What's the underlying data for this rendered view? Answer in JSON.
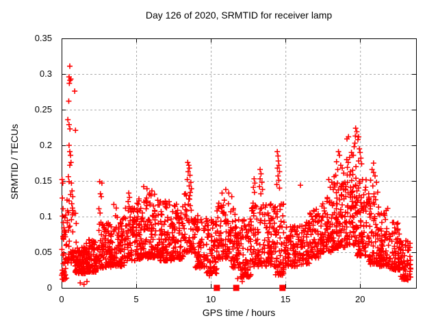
{
  "chart_data": {
    "type": "scatter",
    "title": "Day 126 of 2020, SRMTID for receiver lamp",
    "xlabel": "GPS time / hours",
    "ylabel": "SRMTID / TECUs",
    "xlim": [
      0,
      23.75
    ],
    "ylim": [
      0,
      0.35
    ],
    "x_ticks": [
      0,
      5,
      10,
      15,
      20
    ],
    "x_tick_labels": [
      "0",
      "5",
      "10",
      "15",
      "20"
    ],
    "y_ticks": [
      0,
      0.05,
      0.1,
      0.15,
      0.2,
      0.25,
      0.3,
      0.35
    ],
    "y_tick_labels": [
      "0",
      "0.05",
      "0.1",
      "0.15",
      "0.2",
      "0.25",
      "0.3",
      "0.35"
    ],
    "grid": true,
    "legend_position": "none",
    "marker": "plus",
    "colors": {
      "points": "#ff0000",
      "grid": "#a8a8a8",
      "axis": "#000000",
      "text": "#000000",
      "background": "#ffffff"
    },
    "seed": 126,
    "cloud_bins": [
      [
        0.0,
        0.35,
        0.012,
        0.105,
        45
      ],
      [
        0.35,
        1.0,
        0.035,
        0.125,
        40
      ],
      [
        0.9,
        1.6,
        0.02,
        0.058,
        95
      ],
      [
        1.6,
        2.5,
        0.022,
        0.068,
        105
      ],
      [
        2.5,
        3.3,
        0.028,
        0.092,
        85
      ],
      [
        3.3,
        4.2,
        0.03,
        0.102,
        90
      ],
      [
        4.2,
        5.0,
        0.038,
        0.112,
        75
      ],
      [
        5.0,
        5.8,
        0.04,
        0.128,
        85
      ],
      [
        5.8,
        6.6,
        0.042,
        0.132,
        85
      ],
      [
        6.6,
        7.4,
        0.038,
        0.122,
        80
      ],
      [
        7.4,
        8.2,
        0.04,
        0.118,
        75
      ],
      [
        8.2,
        8.9,
        0.05,
        0.135,
        60
      ],
      [
        8.9,
        9.7,
        0.028,
        0.102,
        70
      ],
      [
        9.7,
        10.4,
        0.02,
        0.098,
        65
      ],
      [
        10.4,
        11.2,
        0.04,
        0.122,
        70
      ],
      [
        11.2,
        12.0,
        0.028,
        0.112,
        75
      ],
      [
        12.0,
        12.7,
        0.015,
        0.098,
        70
      ],
      [
        12.7,
        13.6,
        0.03,
        0.122,
        75
      ],
      [
        13.6,
        14.3,
        0.03,
        0.118,
        70
      ],
      [
        14.3,
        15.0,
        0.018,
        0.122,
        65
      ],
      [
        15.0,
        15.8,
        0.03,
        0.088,
        70
      ],
      [
        15.8,
        16.6,
        0.033,
        0.092,
        65
      ],
      [
        16.6,
        17.4,
        0.042,
        0.112,
        70
      ],
      [
        17.4,
        18.2,
        0.05,
        0.128,
        75
      ],
      [
        18.2,
        19.0,
        0.055,
        0.148,
        80
      ],
      [
        19.0,
        19.8,
        0.06,
        0.162,
        85
      ],
      [
        19.8,
        20.5,
        0.045,
        0.152,
        80
      ],
      [
        20.5,
        21.3,
        0.033,
        0.138,
        75
      ],
      [
        21.3,
        22.0,
        0.03,
        0.112,
        70
      ],
      [
        22.0,
        22.7,
        0.025,
        0.092,
        70
      ],
      [
        22.7,
        23.4,
        0.012,
        0.068,
        65
      ]
    ],
    "peak_points": [
      [
        0.55,
        0.311
      ],
      [
        0.5,
        0.296
      ],
      [
        0.56,
        0.291
      ],
      [
        0.62,
        0.293
      ],
      [
        0.52,
        0.287
      ],
      [
        0.88,
        0.276
      ],
      [
        0.48,
        0.262
      ],
      [
        0.42,
        0.236
      ],
      [
        0.5,
        0.229
      ],
      [
        0.56,
        0.223
      ],
      [
        0.93,
        0.221
      ],
      [
        0.5,
        0.2
      ],
      [
        0.55,
        0.191
      ],
      [
        0.6,
        0.186
      ],
      [
        0.63,
        0.176
      ],
      [
        0.55,
        0.172
      ],
      [
        0.45,
        0.156
      ],
      [
        0.5,
        0.149
      ],
      [
        0.66,
        0.147
      ],
      [
        0.7,
        0.136
      ],
      [
        0.6,
        0.131
      ],
      [
        0.75,
        0.128
      ],
      [
        0.5,
        0.122
      ],
      [
        0.68,
        0.118
      ],
      [
        0.73,
        0.112
      ],
      [
        0.4,
        0.108
      ],
      [
        0.03,
        0.152
      ],
      [
        0.08,
        0.147
      ],
      [
        0.05,
        0.126
      ],
      [
        0.1,
        0.111
      ],
      [
        1.25,
        0.007
      ],
      [
        1.5,
        0.005
      ],
      [
        1.7,
        0.009
      ],
      [
        0.15,
        0.012
      ],
      [
        12.1,
        0.009
      ],
      [
        11.8,
        0.013
      ],
      [
        12.4,
        0.016
      ],
      [
        14.7,
        0.018
      ],
      [
        14.85,
        0.021
      ],
      [
        9.9,
        0.017
      ],
      [
        10.1,
        0.021
      ],
      [
        23.0,
        0.013
      ],
      [
        23.2,
        0.011
      ],
      [
        2.55,
        0.149
      ],
      [
        2.7,
        0.147
      ],
      [
        2.6,
        0.132
      ],
      [
        2.66,
        0.128
      ],
      [
        2.5,
        0.111
      ],
      [
        2.58,
        0.105
      ],
      [
        3.5,
        0.117
      ],
      [
        3.66,
        0.112
      ],
      [
        4.5,
        0.133
      ],
      [
        4.55,
        0.127
      ],
      [
        4.46,
        0.121
      ],
      [
        4.52,
        0.114
      ],
      [
        5.5,
        0.142
      ],
      [
        5.72,
        0.139
      ],
      [
        6.05,
        0.136
      ],
      [
        5.9,
        0.133
      ],
      [
        8.45,
        0.176
      ],
      [
        8.52,
        0.172
      ],
      [
        8.56,
        0.168
      ],
      [
        8.48,
        0.163
      ],
      [
        8.6,
        0.158
      ],
      [
        8.42,
        0.152
      ],
      [
        8.66,
        0.148
      ],
      [
        8.55,
        0.143
      ],
      [
        8.7,
        0.139
      ],
      [
        8.62,
        0.134
      ],
      [
        10.75,
        0.133
      ],
      [
        11.0,
        0.138
      ],
      [
        11.2,
        0.133
      ],
      [
        11.4,
        0.128
      ],
      [
        10.9,
        0.123
      ],
      [
        12.9,
        0.153
      ],
      [
        12.95,
        0.147
      ],
      [
        12.85,
        0.141
      ],
      [
        12.92,
        0.134
      ],
      [
        13.3,
        0.166
      ],
      [
        13.36,
        0.16
      ],
      [
        13.3,
        0.153
      ],
      [
        13.42,
        0.148
      ],
      [
        13.26,
        0.142
      ],
      [
        13.46,
        0.138
      ],
      [
        13.35,
        0.132
      ],
      [
        14.45,
        0.191
      ],
      [
        14.5,
        0.185
      ],
      [
        14.52,
        0.178
      ],
      [
        14.56,
        0.172
      ],
      [
        14.46,
        0.168
      ],
      [
        14.6,
        0.163
      ],
      [
        14.5,
        0.157
      ],
      [
        14.55,
        0.151
      ],
      [
        14.42,
        0.145
      ],
      [
        14.6,
        0.14
      ],
      [
        16.0,
        0.144
      ],
      [
        17.9,
        0.152
      ],
      [
        18.1,
        0.148
      ],
      [
        18.26,
        0.156
      ],
      [
        18.0,
        0.141
      ],
      [
        18.2,
        0.138
      ],
      [
        18.55,
        0.191
      ],
      [
        18.62,
        0.186
      ],
      [
        18.42,
        0.177
      ],
      [
        18.7,
        0.172
      ],
      [
        18.5,
        0.166
      ],
      [
        18.8,
        0.168
      ],
      [
        18.9,
        0.161
      ],
      [
        18.36,
        0.158
      ],
      [
        19.1,
        0.18
      ],
      [
        19.2,
        0.176
      ],
      [
        19.3,
        0.183
      ],
      [
        19.42,
        0.19
      ],
      [
        19.46,
        0.186
      ],
      [
        19.15,
        0.169
      ],
      [
        19.35,
        0.163
      ],
      [
        19.12,
        0.209
      ],
      [
        19.22,
        0.212
      ],
      [
        19.7,
        0.224
      ],
      [
        19.78,
        0.219
      ],
      [
        19.68,
        0.213
      ],
      [
        19.85,
        0.208
      ],
      [
        19.9,
        0.212
      ],
      [
        19.6,
        0.198
      ],
      [
        19.65,
        0.203
      ],
      [
        19.95,
        0.195
      ],
      [
        20.0,
        0.19
      ],
      [
        19.55,
        0.186
      ],
      [
        20.05,
        0.182
      ],
      [
        19.9,
        0.178
      ],
      [
        20.1,
        0.174
      ],
      [
        19.72,
        0.17
      ],
      [
        19.5,
        0.165
      ],
      [
        20.8,
        0.166
      ],
      [
        20.9,
        0.175
      ],
      [
        20.9,
        0.162
      ],
      [
        21.0,
        0.157
      ],
      [
        20.7,
        0.151
      ],
      [
        21.1,
        0.148
      ],
      [
        20.85,
        0.143
      ]
    ],
    "axis_square_markers_x": [
      10.4,
      11.7,
      14.8
    ]
  }
}
